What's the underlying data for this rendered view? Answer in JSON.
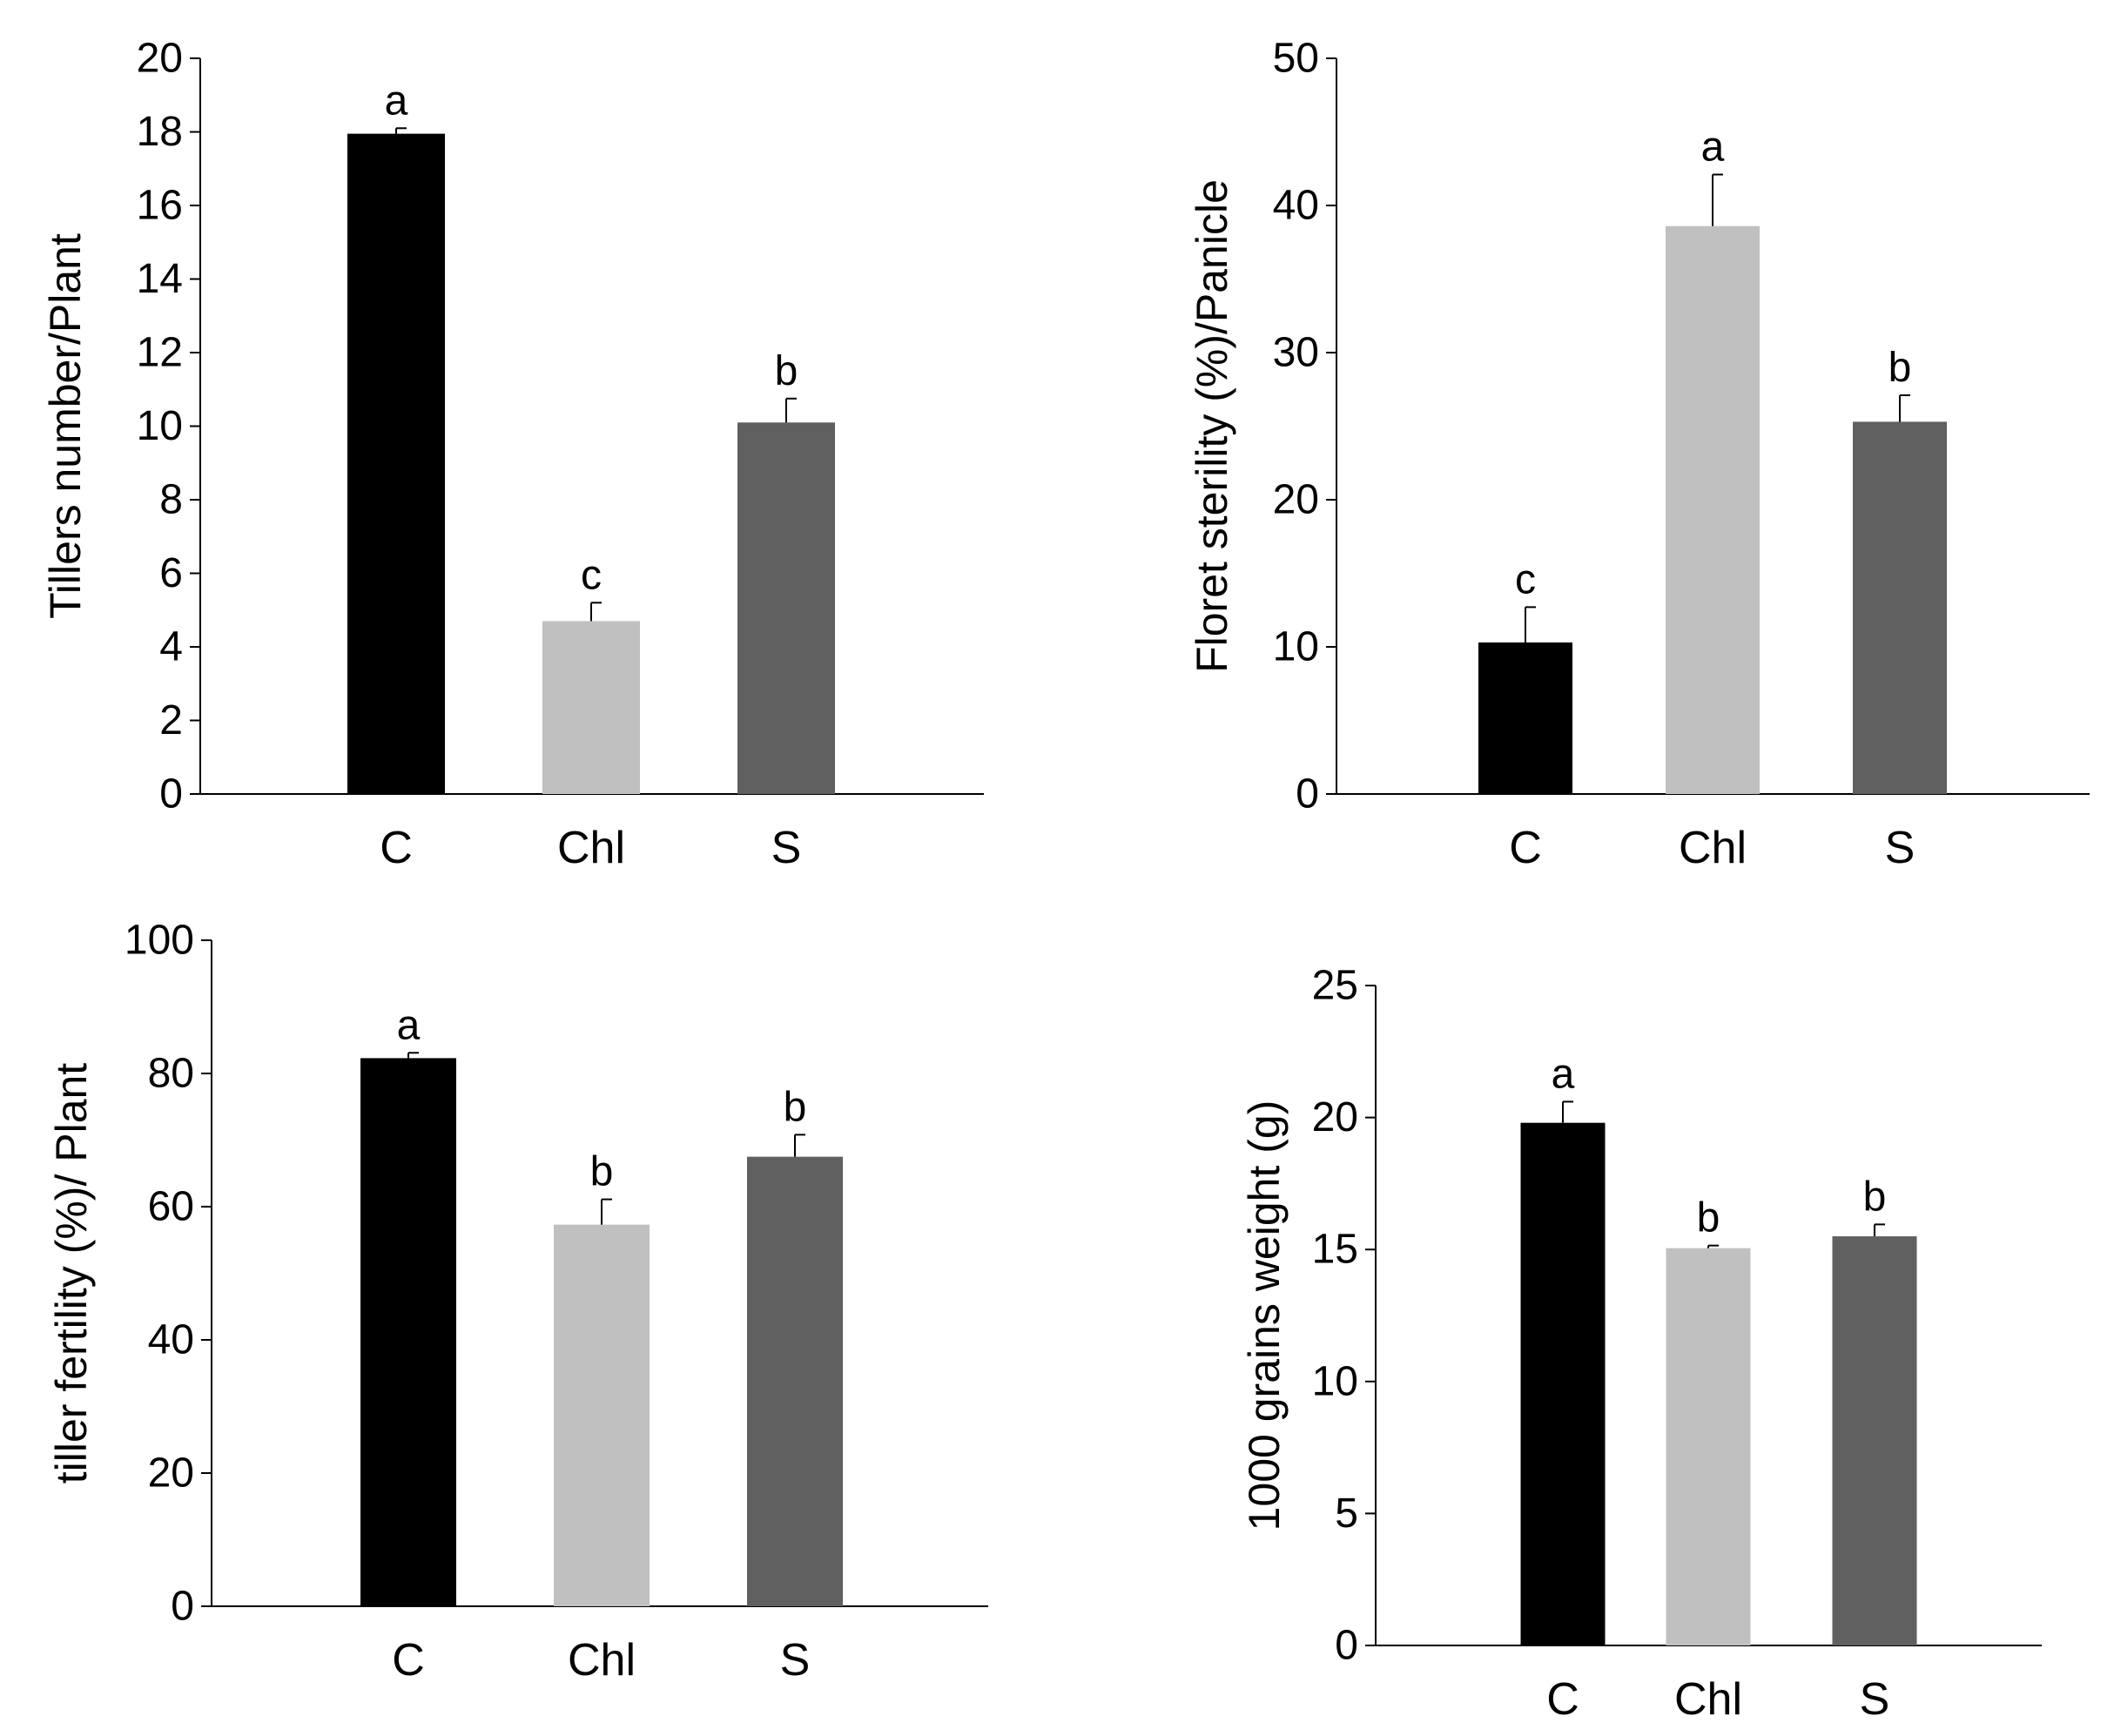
{
  "colors": {
    "C": "#000000",
    "Chl": "#c0c0c0",
    "S": "#606060",
    "axis": "#000000",
    "background": "#ffffff"
  },
  "chart_data": [
    {
      "type": "bar",
      "categories": [
        "C",
        "Chl",
        "S"
      ],
      "values": [
        17.95,
        4.7,
        10.1
      ],
      "errors": [
        0.15,
        0.5,
        0.65
      ],
      "letters": [
        "a",
        "c",
        "b"
      ],
      "title": "",
      "xlabel": "",
      "ylabel": "Tillers number/Plant",
      "ylim": [
        0,
        20
      ],
      "yticks": [
        0,
        2,
        4,
        6,
        8,
        10,
        12,
        14,
        16,
        18,
        20
      ],
      "grid": false
    },
    {
      "type": "bar",
      "categories": [
        "C",
        "Chl",
        "S"
      ],
      "values": [
        10.3,
        38.6,
        25.3
      ],
      "errors": [
        2.4,
        3.5,
        1.8
      ],
      "letters": [
        "c",
        "a",
        "b"
      ],
      "title": "",
      "xlabel": "",
      "ylabel": "Floret sterility (%)/Panicle",
      "ylim": [
        0,
        50
      ],
      "yticks": [
        0,
        10,
        20,
        30,
        40,
        50
      ],
      "grid": false
    },
    {
      "type": "bar",
      "categories": [
        "C",
        "Chl",
        "S"
      ],
      "values": [
        82.3,
        57.3,
        67.5
      ],
      "errors": [
        0.8,
        3.8,
        3.3
      ],
      "letters": [
        "a",
        "b",
        "b"
      ],
      "title": "",
      "xlabel": "",
      "ylabel": "tiller fertility (%)/ Plant",
      "ylim": [
        0,
        100
      ],
      "yticks": [
        0,
        20,
        40,
        60,
        80,
        100
      ],
      "grid": false
    },
    {
      "type": "bar",
      "categories": [
        "C",
        "Chl",
        "S"
      ],
      "values": [
        19.8,
        15.05,
        15.5
      ],
      "errors": [
        0.8,
        0.1,
        0.45
      ],
      "letters": [
        "a",
        "b",
        "b"
      ],
      "title": "",
      "xlabel": "",
      "ylabel": "1000 grains weight (g)",
      "ylim": [
        0,
        25
      ],
      "yticks": [
        0,
        5,
        10,
        15,
        20,
        25
      ],
      "grid": false
    }
  ]
}
